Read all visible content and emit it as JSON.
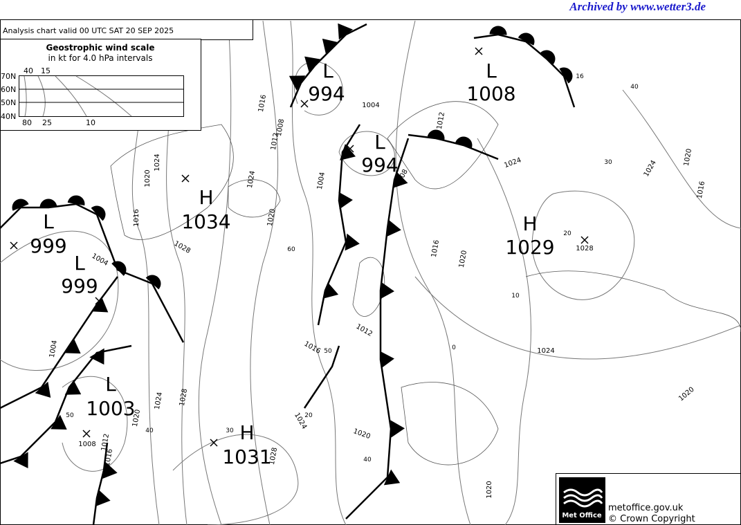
{
  "archive_note": "Archived by www.wetter3.de",
  "header": "Analysis chart  valid 00 UTC SAT 20  SEP 2025",
  "wind_scale": {
    "title": "Geostrophic wind scale",
    "subtitle": "in kt for 4.0 hPa intervals",
    "latitudes": [
      "70N",
      "60N",
      "50N",
      "40N"
    ],
    "top_ticks": [
      "40",
      "15"
    ],
    "bottom_ticks": [
      "80",
      "25",
      "10"
    ]
  },
  "pressure_centres": [
    {
      "type": "L",
      "value": "994"
    },
    {
      "type": "L",
      "value": "1008"
    },
    {
      "type": "L",
      "value": "994"
    },
    {
      "type": "H",
      "value": "1034"
    },
    {
      "type": "L",
      "value": "999"
    },
    {
      "type": "L",
      "value": "999"
    },
    {
      "type": "H",
      "value": "1029"
    },
    {
      "type": "L",
      "value": "1003"
    },
    {
      "type": "H",
      "value": "1031"
    }
  ],
  "isobar_labels": [
    "1016",
    "1008",
    "1012",
    "1004",
    "1012",
    "1024",
    "1020",
    "1016",
    "1024",
    "1020",
    "1004",
    "1008",
    "1028",
    "1004",
    "1016",
    "1020",
    "1024",
    "1024",
    "1020",
    "1016",
    "1028",
    "1024",
    "1020",
    "1012",
    "1016",
    "1004",
    "1024",
    "1028",
    "1020",
    "1012",
    "1016",
    "1008",
    "1024",
    "1020",
    "1028",
    "1020"
  ],
  "latitude_labels": [
    "60",
    "40",
    "30",
    "20",
    "10",
    "0",
    "50",
    "20",
    "50",
    "40",
    "30",
    "40",
    "16"
  ],
  "footer": {
    "logo": "Met Office",
    "site": "metoffice.gov.uk",
    "copyright": "© Crown Copyright"
  }
}
